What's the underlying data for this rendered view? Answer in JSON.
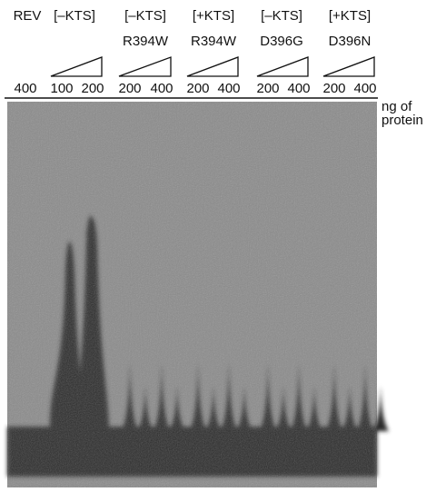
{
  "columns": [
    {
      "label": "REV",
      "amounts": [
        400
      ]
    },
    {
      "label": "[–KTS]",
      "amounts": [
        100,
        200
      ]
    },
    {
      "label": "[–KTS]",
      "sublabel": "R394W",
      "amounts": [
        200,
        400
      ]
    },
    {
      "label": "[+KTS]",
      "sublabel": "R394W",
      "amounts": [
        200,
        400
      ]
    },
    {
      "label": "[–KTS]",
      "sublabel": "D396G",
      "amounts": [
        200,
        400
      ]
    },
    {
      "label": "[+KTS]",
      "sublabel": "D396N",
      "amounts": [
        200,
        400
      ]
    }
  ],
  "unit": [
    "ng of",
    "protein"
  ]
}
